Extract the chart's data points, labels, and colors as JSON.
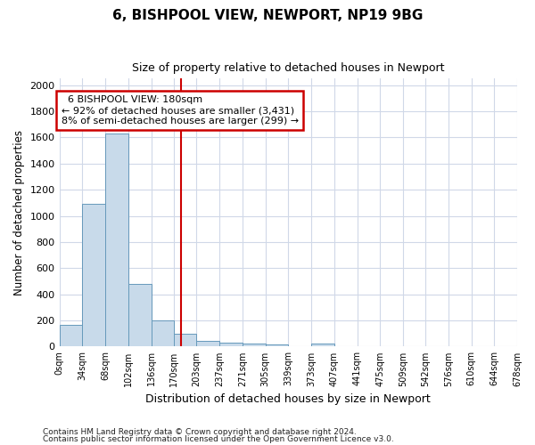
{
  "title1": "6, BISHPOOL VIEW, NEWPORT, NP19 9BG",
  "title2": "Size of property relative to detached houses in Newport",
  "xlabel": "Distribution of detached houses by size in Newport",
  "ylabel": "Number of detached properties",
  "footnote1": "Contains HM Land Registry data © Crown copyright and database right 2024.",
  "footnote2": "Contains public sector information licensed under the Open Government Licence v3.0.",
  "annotation_line1": "6 BISHPOOL VIEW: 180sqm",
  "annotation_line2": "← 92% of detached houses are smaller (3,431)",
  "annotation_line3": "8% of semi-detached houses are larger (299) →",
  "bar_color": "#c8daea",
  "bar_edge_color": "#6699bb",
  "vline_color": "#cc0000",
  "annotation_box_edge": "#cc0000",
  "bin_edges": [
    0,
    34,
    68,
    102,
    136,
    170,
    203,
    237,
    271,
    305,
    339,
    373,
    407,
    441,
    475,
    509,
    542,
    576,
    610,
    644,
    678
  ],
  "bin_labels": [
    "0sqm",
    "34sqm",
    "68sqm",
    "102sqm",
    "136sqm",
    "170sqm",
    "203sqm",
    "237sqm",
    "271sqm",
    "305sqm",
    "339sqm",
    "373sqm",
    "407sqm",
    "441sqm",
    "475sqm",
    "509sqm",
    "542sqm",
    "576sqm",
    "610sqm",
    "644sqm",
    "678sqm"
  ],
  "bar_heights": [
    165,
    1090,
    1630,
    480,
    200,
    100,
    45,
    30,
    22,
    15,
    0,
    20,
    0,
    0,
    0,
    0,
    0,
    0,
    0,
    0
  ],
  "vline_x": 180,
  "ylim": [
    0,
    2050
  ],
  "yticks": [
    0,
    200,
    400,
    600,
    800,
    1000,
    1200,
    1400,
    1600,
    1800,
    2000
  ],
  "bg_color": "#ffffff",
  "plot_bg_color": "#ffffff",
  "grid_color": "#d0d8e8"
}
